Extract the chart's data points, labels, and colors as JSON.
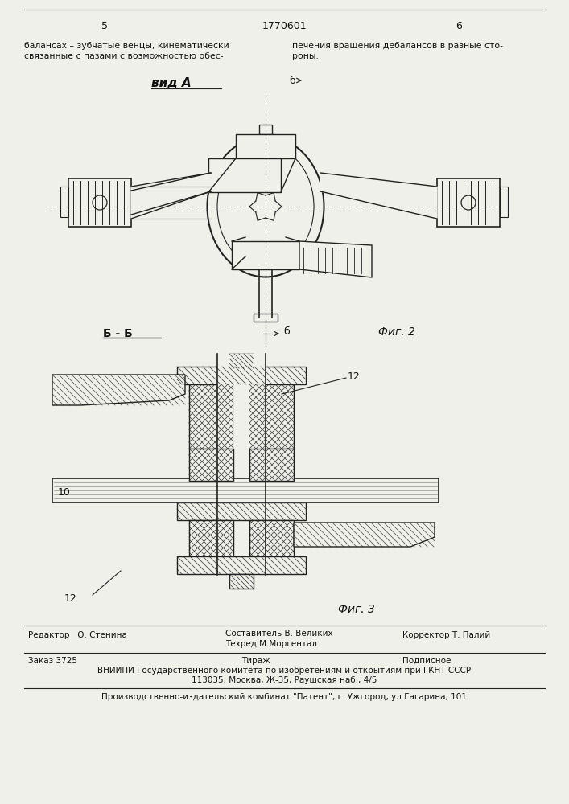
{
  "page_number_left": "5",
  "page_number_center": "1770601",
  "page_number_right": "6",
  "text_left": "балансах – зубчатые венцы, кинематически\nсвязанные с пазами с возможностью обес-",
  "text_right": "печения вращения дебалансов в разные сто-\nроны.",
  "vid_a_label": "вид А",
  "fig2_label": "Фиг. 2",
  "fig3_label": "Фиг. 3",
  "section_label": "Б - Б",
  "label_b": "б",
  "label_10": "10",
  "label_12": "12",
  "editor_line": "Редактор   О. Стенина",
  "composer_line": "Составитель В. Великих",
  "techred_line": "Техред М.Моргентал",
  "corrector_line": "Корректор Т. Палий",
  "order_line": "Заказ 3725",
  "tirazh_line": "Тираж",
  "podpisnoe_line": "Подписное",
  "vniiipi_line": "ВНИИПИ Государственного комитета по изобретениям и открытиям при ГКНТ СССР",
  "address_line": "113035, Москва, Ж-35, Раушская наб., 4/5",
  "publisher_line": "Производственно-издательский комбинат \"Патент\", г. Ужгород, ул.Гагарина, 101",
  "bg_color": "#f0f0eb",
  "line_color": "#222222",
  "text_color": "#111111"
}
